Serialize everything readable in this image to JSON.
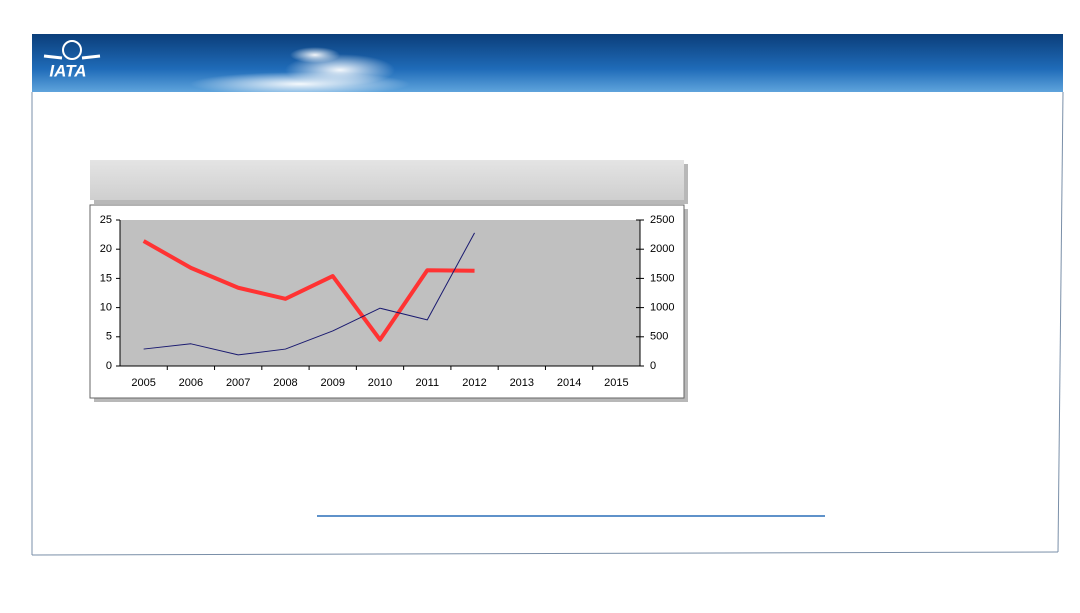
{
  "header": {
    "logo": "IATA"
  },
  "chart_data": {
    "type": "line",
    "categories": [
      "2005",
      "2006",
      "2007",
      "2008",
      "2009",
      "2010",
      "2011",
      "2012",
      "2013",
      "2014",
      "2015"
    ],
    "series": [
      {
        "color": "#ff3333",
        "values": [
          21.4,
          16.8,
          13.4,
          11.5,
          15.4,
          4.5,
          16.4,
          16.3,
          null,
          null,
          null
        ]
      },
      {
        "color": "#1a1a70",
        "axis": "y2",
        "values": [
          290,
          380,
          190,
          290,
          600,
          990,
          790,
          2280,
          null,
          null,
          null
        ]
      }
    ],
    "ylim": [
      0,
      25
    ],
    "yticks": [
      0,
      5,
      10,
      15,
      20,
      25
    ],
    "y2lim": [
      0,
      2500
    ],
    "y2ticks": [
      0,
      500,
      1000,
      1500,
      2000,
      2500
    ],
    "grid": false
  }
}
